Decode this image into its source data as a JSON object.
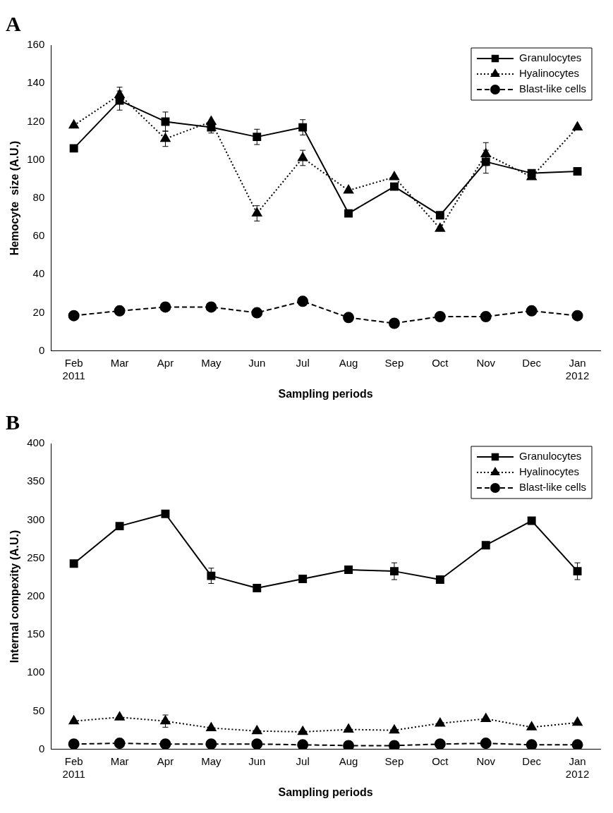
{
  "chart_data": [
    {
      "type": "line",
      "title": "A",
      "xlabel": "Sampling periods",
      "ylabel": "Hemocyte  size (A.U.)",
      "categories": [
        "Feb 2011",
        "Mar",
        "Apr",
        "May",
        "Jun",
        "Jul",
        "Aug",
        "Sep",
        "Oct",
        "Nov",
        "Dec",
        "Jan 2012"
      ],
      "series": [
        {
          "name": "Granulocytes",
          "color": "#000000",
          "marker": "square",
          "line_style": "solid",
          "values": [
            106,
            131,
            120,
            117,
            112,
            117,
            72,
            86,
            71,
            99,
            93,
            94
          ],
          "errors": [
            null,
            5,
            5,
            3,
            4,
            4,
            null,
            null,
            null,
            6,
            null,
            null
          ]
        },
        {
          "name": "Hyalinocytes",
          "color": "#000000",
          "marker": "triangle",
          "line_style": "dotted",
          "values": [
            118,
            134,
            111,
            120,
            72,
            101,
            84,
            91,
            64,
            103,
            91,
            117
          ],
          "errors": [
            null,
            4,
            4,
            null,
            4,
            4,
            null,
            null,
            null,
            6,
            null,
            null
          ]
        },
        {
          "name": "Blast-like cells",
          "color": "#000000",
          "marker": "circle",
          "line_style": "dashed",
          "values": [
            18.5,
            21,
            23,
            23,
            20,
            26,
            17.5,
            14.5,
            18,
            18,
            21,
            18.5
          ]
        }
      ],
      "ylim": [
        0,
        160
      ],
      "yticks": [
        0,
        20,
        40,
        60,
        80,
        100,
        120,
        140,
        160
      ],
      "grid": false,
      "legend": "top right"
    },
    {
      "type": "line",
      "title": "B",
      "xlabel": "Sampling periods",
      "ylabel": "Internal compexity (A.U.)",
      "categories": [
        "Feb 2011",
        "Mar",
        "Apr",
        "May",
        "Jun",
        "Jul",
        "Aug",
        "Sep",
        "Oct",
        "Nov",
        "Dec",
        "Jan 2012"
      ],
      "series": [
        {
          "name": "Granulocytes",
          "color": "#000000",
          "marker": "square",
          "line_style": "solid",
          "values": [
            243,
            292,
            308,
            227,
            211,
            223,
            235,
            233,
            222,
            267,
            299,
            233
          ],
          "errors": [
            null,
            null,
            null,
            10,
            null,
            null,
            null,
            11,
            null,
            null,
            null,
            11
          ]
        },
        {
          "name": "Hyalinocytes",
          "color": "#000000",
          "marker": "triangle",
          "line_style": "dotted",
          "values": [
            37,
            42,
            37,
            28,
            24,
            23,
            26,
            25,
            34,
            40,
            29,
            35
          ],
          "errors": [
            null,
            null,
            8,
            null,
            null,
            null,
            null,
            null,
            null,
            null,
            null,
            null
          ]
        },
        {
          "name": "Blast-like cells",
          "color": "#000000",
          "marker": "circle",
          "line_style": "dashed",
          "values": [
            7,
            8,
            7,
            7,
            7,
            6,
            5,
            5,
            7,
            8,
            6,
            6
          ]
        }
      ],
      "ylim": [
        0,
        400
      ],
      "yticks": [
        0,
        50,
        100,
        150,
        200,
        250,
        300,
        350,
        400
      ],
      "grid": false,
      "legend": "top right"
    }
  ]
}
